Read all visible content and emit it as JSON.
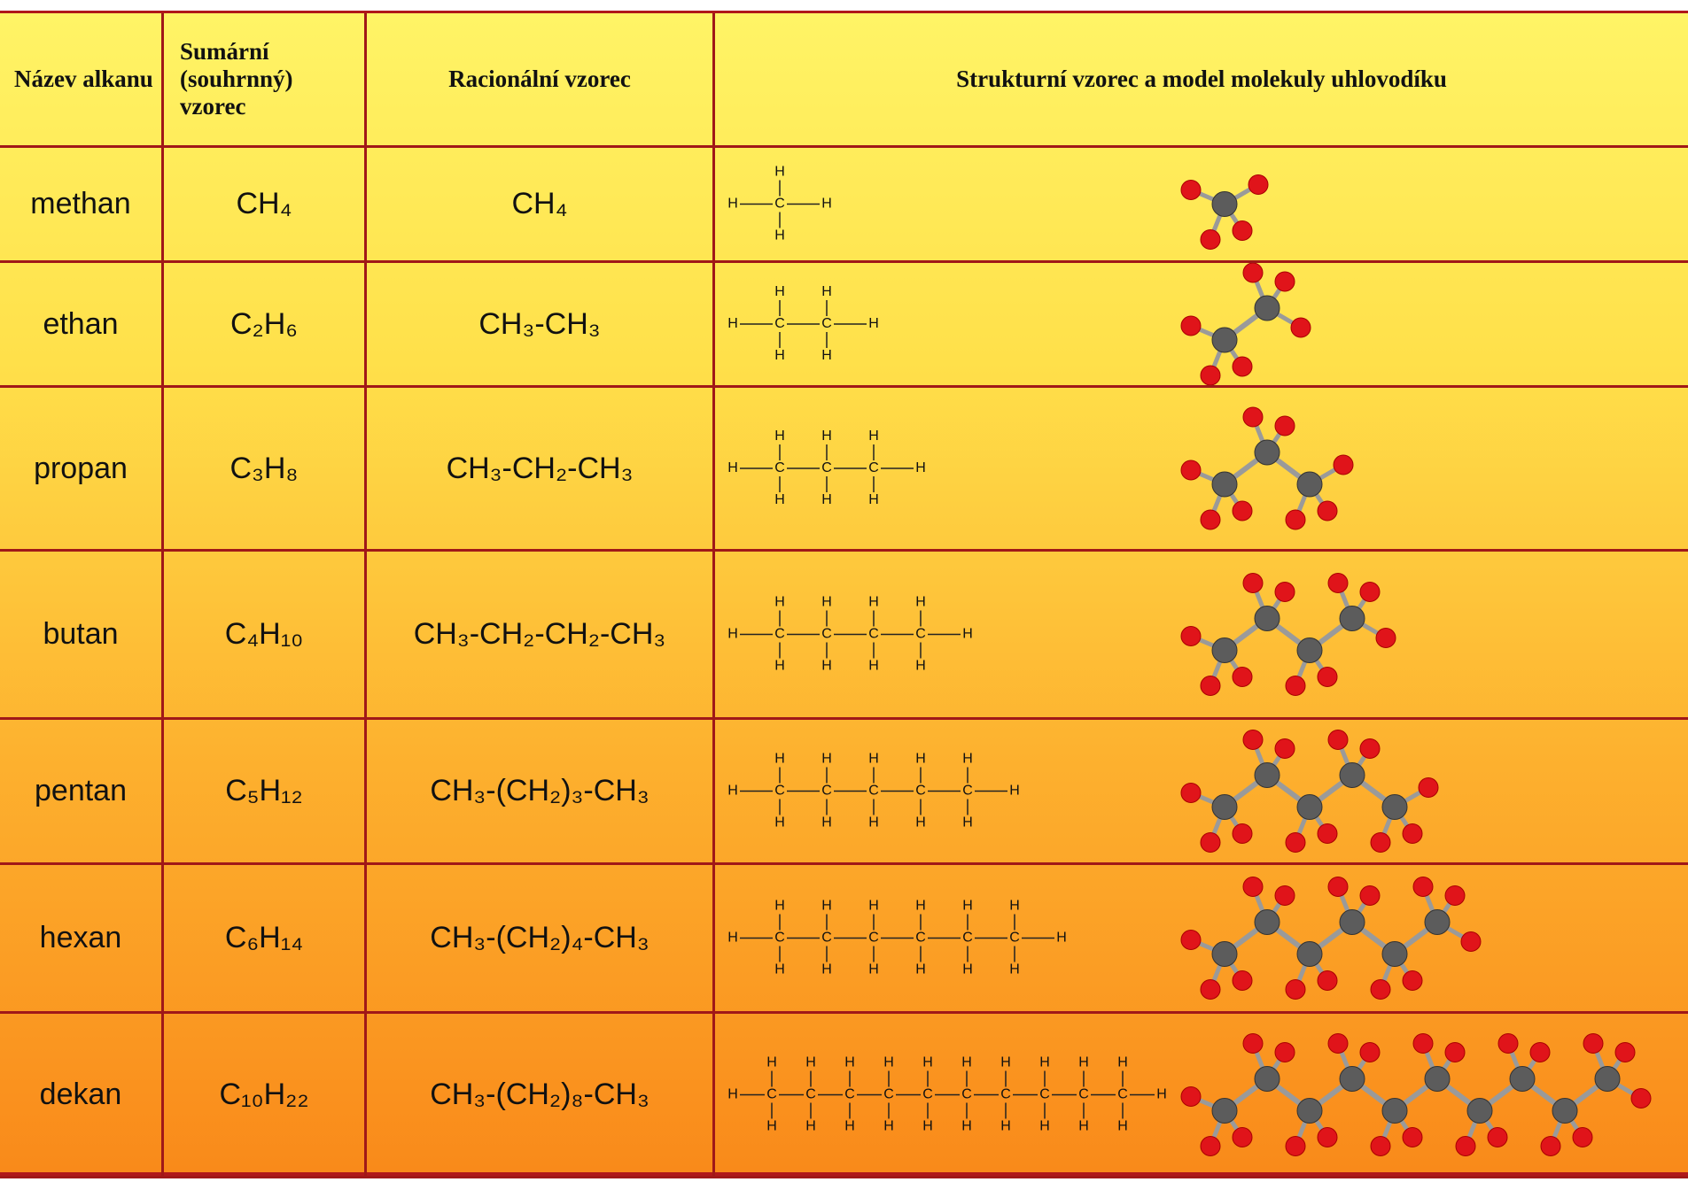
{
  "table": {
    "header": [
      "Název alkanu",
      "Sumární (souhrnný) vzorec",
      "Racionální vzorec",
      "Strukturní vzorec a model molekuly uhlovodíku"
    ],
    "rows": [
      {
        "name": "methan",
        "summary": "CH₄",
        "rational": "CH₄"
      },
      {
        "name": "ethan",
        "summary": "C₂H₆",
        "rational": "CH₃-CH₃"
      },
      {
        "name": "propan",
        "summary": "C₃H₈",
        "rational": "CH₃-CH₂-CH₃"
      },
      {
        "name": "butan",
        "summary": "C₄H₁₀",
        "rational": "CH₃-CH₂-CH₂-CH₃"
      },
      {
        "name": "pentan",
        "summary": "C₅H₁₂",
        "rational": "CH₃-(CH₂)₃-CH₃"
      },
      {
        "name": "hexan",
        "summary": "C₆H₁₄",
        "rational": "CH₃-(CH₂)₄-CH₃"
      },
      {
        "name": "dekan",
        "summary": "C₁₀H₂₂",
        "rational": "CH₃-(CH₂)₈-CH₃"
      }
    ]
  },
  "atoms": {
    "carbon": "C",
    "hydrogen": "H"
  }
}
